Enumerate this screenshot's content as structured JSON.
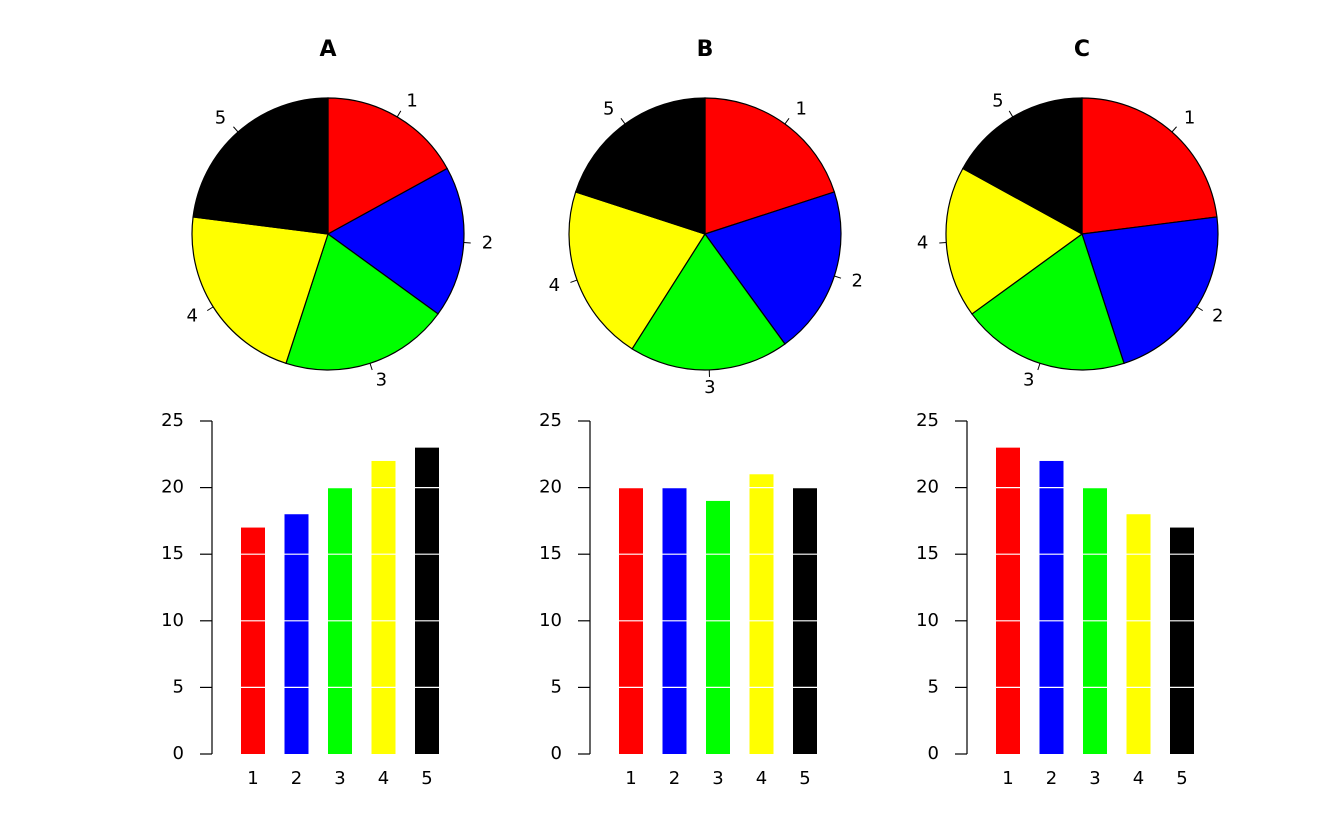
{
  "colors": {
    "1": "#ff0000",
    "2": "#0000ff",
    "3": "#00ff00",
    "4": "#ffff00",
    "5": "#000000"
  },
  "chart_data": [
    {
      "type": "pie",
      "title": "A",
      "categories": [
        "1",
        "2",
        "3",
        "4",
        "5"
      ],
      "values": [
        17,
        18,
        20,
        22,
        23
      ],
      "start_angle_deg": 90,
      "direction": "clockwise"
    },
    {
      "type": "pie",
      "title": "B",
      "categories": [
        "1",
        "2",
        "3",
        "4",
        "5"
      ],
      "values": [
        20,
        20,
        19,
        21,
        20
      ],
      "start_angle_deg": 90,
      "direction": "clockwise"
    },
    {
      "type": "pie",
      "title": "C",
      "categories": [
        "1",
        "2",
        "3",
        "4",
        "5"
      ],
      "values": [
        23,
        22,
        20,
        18,
        17
      ],
      "start_angle_deg": 90,
      "direction": "clockwise"
    },
    {
      "type": "bar",
      "categories": [
        "1",
        "2",
        "3",
        "4",
        "5"
      ],
      "values": [
        17,
        18,
        20,
        22,
        23
      ],
      "ylim": [
        0,
        25
      ],
      "yticks": [
        0,
        5,
        10,
        15,
        20,
        25
      ],
      "grid": "white horizontal lines at y ticks"
    },
    {
      "type": "bar",
      "categories": [
        "1",
        "2",
        "3",
        "4",
        "5"
      ],
      "values": [
        20,
        20,
        19,
        21,
        20
      ],
      "ylim": [
        0,
        25
      ],
      "yticks": [
        0,
        5,
        10,
        15,
        20,
        25
      ],
      "grid": "white horizontal lines at y ticks"
    },
    {
      "type": "bar",
      "categories": [
        "1",
        "2",
        "3",
        "4",
        "5"
      ],
      "values": [
        23,
        22,
        20,
        18,
        17
      ],
      "ylim": [
        0,
        25
      ],
      "yticks": [
        0,
        5,
        10,
        15,
        20,
        25
      ],
      "grid": "white horizontal lines at y ticks"
    }
  ]
}
